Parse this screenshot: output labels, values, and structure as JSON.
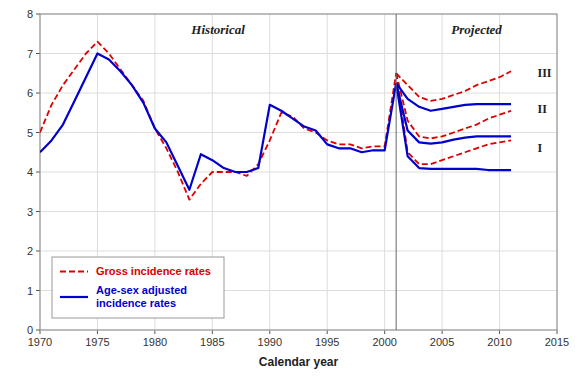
{
  "chart_data": {
    "type": "line",
    "x_label": "Calendar year",
    "xlim": [
      1970,
      2015
    ],
    "ylim": [
      0,
      8
    ],
    "xticks": [
      1970,
      1975,
      1980,
      1985,
      1990,
      1995,
      2000,
      2005,
      2010,
      2015
    ],
    "yticks": [
      0,
      1,
      2,
      3,
      4,
      5,
      6,
      7,
      8
    ],
    "grid": true,
    "legend": "lower left",
    "vline": 2001,
    "annotations": [
      {
        "text": "Historical"
      },
      {
        "text": "Projected"
      },
      {
        "text": "III",
        "x": 2013.3,
        "y": 6.5
      },
      {
        "text": "II",
        "x": 2013.3,
        "y": 5.6
      },
      {
        "text": "I",
        "x": 2013.3,
        "y": 4.6
      }
    ],
    "series": [
      {
        "name": "Gross incidence rates",
        "color": "#dd0000",
        "line_style": "dashed",
        "x": [
          1970,
          1971,
          1972,
          1973,
          1974,
          1975,
          1976,
          1977,
          1978,
          1979,
          1980,
          1981,
          1982,
          1983,
          1984,
          1985,
          1986,
          1987,
          1988,
          1989,
          1990,
          1991,
          1992,
          1993,
          1994,
          1995,
          1996,
          1997,
          1998,
          1999,
          2000,
          2001
        ],
        "values": [
          5.0,
          5.7,
          6.2,
          6.6,
          7.0,
          7.3,
          7.0,
          6.6,
          6.2,
          5.8,
          5.1,
          4.6,
          4.0,
          3.3,
          3.7,
          4.0,
          4.0,
          4.0,
          3.9,
          4.2,
          4.8,
          5.5,
          5.4,
          5.1,
          5.0,
          4.8,
          4.7,
          4.7,
          4.6,
          4.65,
          4.65,
          6.5
        ]
      },
      {
        "name": "Age-sex adjusted\nincidence rates",
        "color": "#0000cc",
        "line_style": "solid",
        "x": [
          1970,
          1971,
          1972,
          1973,
          1974,
          1975,
          1976,
          1977,
          1978,
          1979,
          1980,
          1981,
          1982,
          1983,
          1984,
          1985,
          1986,
          1987,
          1988,
          1989,
          1990,
          1991,
          1992,
          1993,
          1994,
          1995,
          1996,
          1997,
          1998,
          1999,
          2000,
          2001
        ],
        "values": [
          4.5,
          4.8,
          5.2,
          5.8,
          6.4,
          7.0,
          6.85,
          6.55,
          6.2,
          5.75,
          5.1,
          4.75,
          4.15,
          3.55,
          4.45,
          4.3,
          4.1,
          4.0,
          4.0,
          4.1,
          5.7,
          5.55,
          5.35,
          5.15,
          5.05,
          4.7,
          4.6,
          4.6,
          4.5,
          4.55,
          4.55,
          6.25
        ]
      },
      {
        "name": "Gross incidence rates",
        "color": "#dd0000",
        "line_style": "dashed",
        "x": [
          2001,
          2002,
          2003,
          2004,
          2005,
          2006,
          2007,
          2008,
          2009,
          2010,
          2011
        ],
        "values": [
          6.5,
          6.2,
          5.9,
          5.8,
          5.85,
          5.95,
          6.05,
          6.2,
          6.3,
          6.4,
          6.55
        ]
      },
      {
        "name": "Gross incidence rates",
        "color": "#dd0000",
        "line_style": "dashed",
        "x": [
          2001,
          2002,
          2003,
          2004,
          2005,
          2006,
          2007,
          2008,
          2009,
          2010,
          2011
        ],
        "values": [
          6.5,
          5.3,
          4.9,
          4.85,
          4.9,
          5.0,
          5.1,
          5.2,
          5.35,
          5.45,
          5.55
        ]
      },
      {
        "name": "Gross incidence rates",
        "color": "#dd0000",
        "line_style": "dashed",
        "x": [
          2001,
          2002,
          2003,
          2004,
          2005,
          2006,
          2007,
          2008,
          2009,
          2010,
          2011
        ],
        "values": [
          6.5,
          4.5,
          4.2,
          4.2,
          4.3,
          4.4,
          4.5,
          4.6,
          4.7,
          4.75,
          4.8
        ]
      },
      {
        "name": "Age-sex adjusted\nincidence rates",
        "color": "#0000cc",
        "line_style": "solid",
        "x": [
          2001,
          2002,
          2003,
          2004,
          2005,
          2006,
          2007,
          2008,
          2009,
          2010,
          2011
        ],
        "values": [
          6.25,
          5.85,
          5.65,
          5.55,
          5.6,
          5.65,
          5.7,
          5.72,
          5.72,
          5.72,
          5.72
        ]
      },
      {
        "name": "Age-sex adjusted\nincidence rates",
        "color": "#0000cc",
        "line_style": "solid",
        "x": [
          2001,
          2002,
          2003,
          2004,
          2005,
          2006,
          2007,
          2008,
          2009,
          2010,
          2011
        ],
        "values": [
          6.25,
          5.05,
          4.75,
          4.72,
          4.75,
          4.82,
          4.87,
          4.9,
          4.9,
          4.9,
          4.9
        ]
      },
      {
        "name": "Age-sex adjusted\nincidence rates",
        "color": "#0000cc",
        "line_style": "solid",
        "x": [
          2001,
          2002,
          2003,
          2004,
          2005,
          2006,
          2007,
          2008,
          2009,
          2010,
          2011
        ],
        "values": [
          6.25,
          4.4,
          4.1,
          4.08,
          4.08,
          4.08,
          4.08,
          4.08,
          4.05,
          4.05,
          4.05
        ]
      }
    ]
  }
}
